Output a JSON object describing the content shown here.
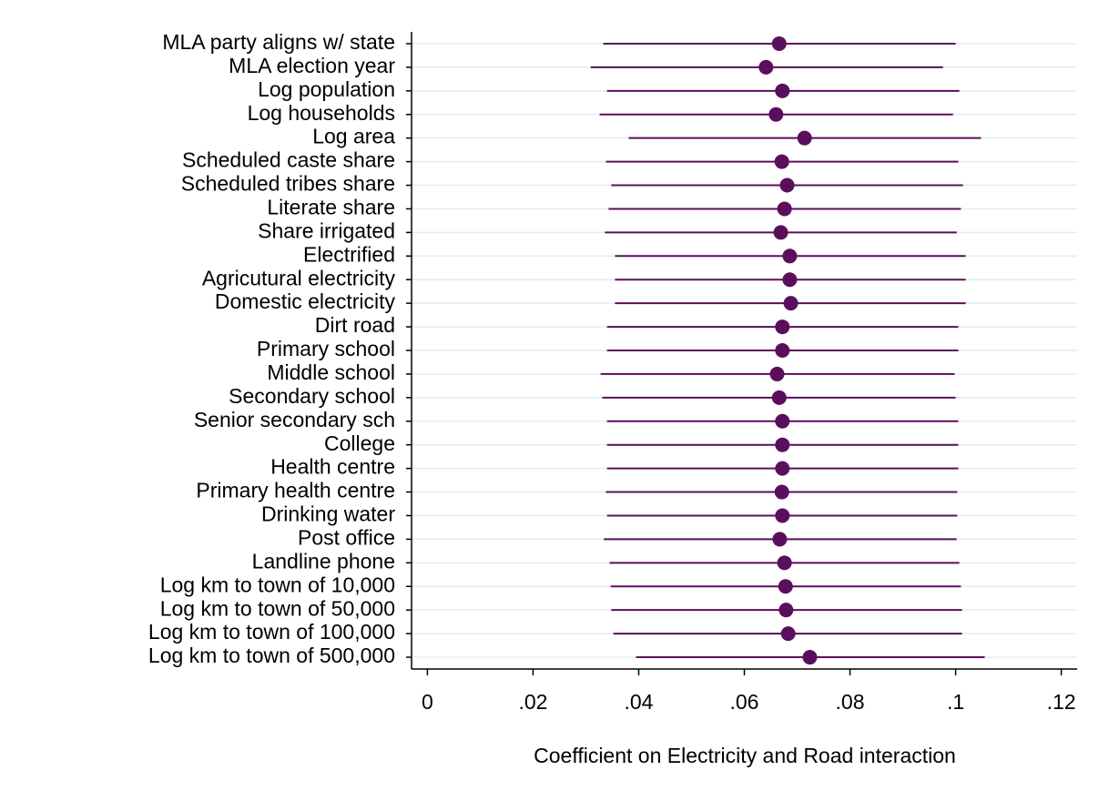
{
  "chart_data": {
    "type": "coefplot",
    "xlabel": "Coefficient on Electricity and Road interaction",
    "categories": [
      "MLA party aligns w/ state",
      "MLA election year",
      "Log population",
      "Log households",
      "Log area",
      "Scheduled caste share",
      "Scheduled tribes share",
      "Literate share",
      "Share irrigated",
      "Electrified",
      "Agricutural electricity",
      "Domestic electricity",
      "Dirt road",
      "Primary school",
      "Middle school",
      "Secondary school",
      "Senior secondary sch",
      "College",
      "Health centre",
      "Primary health centre",
      "Drinking water",
      "Post office",
      "Landline phone",
      "Log km to town of 10,000",
      "Log km to town of 50,000",
      "Log km to town of 100,000",
      "Log km to town of 500,000"
    ],
    "values": [
      0.0666,
      0.0641,
      0.0672,
      0.066,
      0.0714,
      0.0671,
      0.0681,
      0.0676,
      0.0669,
      0.0686,
      0.0686,
      0.0688,
      0.0672,
      0.0672,
      0.0662,
      0.0666,
      0.0672,
      0.0672,
      0.0672,
      0.0671,
      0.0672,
      0.0667,
      0.0676,
      0.0678,
      0.0679,
      0.0683,
      0.0724
    ],
    "lower": [
      0.0333,
      0.0309,
      0.034,
      0.0326,
      0.0381,
      0.0338,
      0.0348,
      0.0343,
      0.0336,
      0.0355,
      0.0355,
      0.0355,
      0.034,
      0.034,
      0.0328,
      0.0331,
      0.034,
      0.034,
      0.034,
      0.0338,
      0.034,
      0.0334,
      0.0345,
      0.0347,
      0.0348,
      0.0352,
      0.0395
    ],
    "upper": [
      0.1,
      0.0976,
      0.1007,
      0.0995,
      0.1048,
      0.1005,
      0.1014,
      0.101,
      0.1002,
      0.1019,
      0.1019,
      0.1019,
      0.1005,
      0.1005,
      0.0998,
      0.1,
      0.1005,
      0.1005,
      0.1005,
      0.1003,
      0.1003,
      0.1002,
      0.1007,
      0.101,
      0.1012,
      0.1012,
      0.1055
    ],
    "color": "#5a0f5c",
    "xlim": [
      -0.003,
      0.123
    ],
    "xticks": [
      0,
      {
        "value": 0.02,
        "label": ".02"
      },
      {
        "value": 0.04,
        "label": ".04"
      },
      {
        "value": 0.06,
        "label": ".06"
      },
      {
        "value": 0.08,
        "label": ".08"
      },
      {
        "value": 0.1,
        "label": ".1"
      },
      {
        "value": 0.12,
        "label": ".12"
      }
    ],
    "grid": true
  }
}
